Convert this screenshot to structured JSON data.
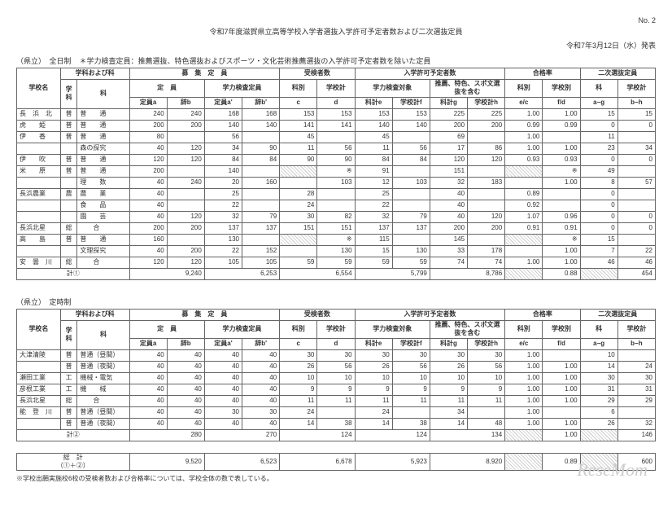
{
  "doc": {
    "title": "令和7年度滋賀県立高等学校入学者選抜入学許可予定者数および二次選抜定員",
    "page_no": "No. 2",
    "announce": "令和7年3月12日（水）発表",
    "section1_label": "（県立）　全日制",
    "note": "＊学力検査定員：推薦選抜、特色選抜およびスポーツ・文化芸術推薦選抜の入学許可予定者数を除いた定員",
    "section2_label": "（県立）　定時制",
    "footnote": "※学校出願実施校6校の受検者数および合格率については、学校全体の数で表している。",
    "watermark": "ReseMom"
  },
  "headers": {
    "school_name": "学校名",
    "dept_group": "学科および科",
    "dept": "学科",
    "course": "科",
    "recruit": "募　集　定　員",
    "capacity": "定　員",
    "exam_capacity": "学力検査定員",
    "examinees": "受検者数",
    "permit": "入学許可予定者数",
    "exam_subject": "学力検査対象",
    "recommend": "推薦、特色、スポ文選抜を含む",
    "pass_rate": "合格率",
    "second": "二次選抜定員",
    "cap_a": "定員a",
    "abs_b": "辞b",
    "cap_a2": "定員a'",
    "abs_b2": "辞b'",
    "c": "c",
    "d": "d",
    "ke": "科計e",
    "kf": "学校計f",
    "kg": "科計g",
    "kh": "学校計h",
    "ec": "e/c",
    "fd": "f/d",
    "ag": "a−g",
    "bh": "b−h",
    "kabetsu": "科別",
    "gakkobetsu": "学校別",
    "ka": "科",
    "gakkokei": "学校計"
  },
  "t1": {
    "rows": [
      {
        "school": "長　浜　北",
        "dept": "普",
        "course": "普　　通",
        "a": "240",
        "b": "240",
        "a2": "168",
        "b2": "168",
        "c": "153",
        "d": "153",
        "e": "153",
        "f": "153",
        "g": "225",
        "h": "225",
        "ec": "1.00",
        "fd": "1.00",
        "ag": "15",
        "bh": "15"
      },
      {
        "school": "虎　　姫",
        "dept": "普",
        "course": "普　　通",
        "a": "200",
        "b": "200",
        "a2": "140",
        "b2": "140",
        "c": "141",
        "d": "141",
        "e": "140",
        "f": "140",
        "g": "200",
        "h": "200",
        "ec": "0.99",
        "fd": "0.99",
        "ag": "0",
        "bh": "0"
      },
      {
        "school": "伊　　香",
        "dept": "普",
        "course": "普　　通",
        "a": "80",
        "b": "",
        "a2": "56",
        "b2": "",
        "c": "45",
        "d": "",
        "e": "45",
        "f": "",
        "g": "69",
        "h": "",
        "ec": "1.00",
        "fd": "",
        "ag": "11",
        "bh": ""
      },
      {
        "school": "",
        "dept": "",
        "course": "森の探究",
        "a": "40",
        "b": "120",
        "a2": "34",
        "b2": "90",
        "c": "11",
        "d": "56",
        "e": "11",
        "f": "56",
        "g": "17",
        "h": "86",
        "ec": "1.00",
        "fd": "1.00",
        "ag": "23",
        "bh": "34"
      },
      {
        "school": "伊　　吹",
        "dept": "普",
        "course": "普　　通",
        "a": "120",
        "b": "120",
        "a2": "84",
        "b2": "84",
        "c": "90",
        "d": "90",
        "e": "84",
        "f": "84",
        "g": "120",
        "h": "120",
        "ec": "0.93",
        "fd": "0.93",
        "ag": "0",
        "bh": "0"
      },
      {
        "school": "米　　原",
        "dept": "普",
        "course": "普　　通",
        "a": "200",
        "b": "",
        "a2": "140",
        "b2": "",
        "c": "",
        "d": "※",
        "e": "91",
        "f": "",
        "g": "151",
        "h": "",
        "ec": "",
        "fd": "※",
        "ag": "49",
        "bh": ""
      },
      {
        "school": "",
        "dept": "",
        "course": "理　　数",
        "a": "40",
        "b": "240",
        "a2": "20",
        "b2": "160",
        "c": "",
        "d": "103",
        "e": "12",
        "f": "103",
        "g": "32",
        "h": "183",
        "ec": "",
        "fd": "1.00",
        "ag": "8",
        "bh": "57"
      },
      {
        "school": "長浜農業",
        "dept": "農",
        "course": "農　　業",
        "a": "40",
        "b": "",
        "a2": "25",
        "b2": "",
        "c": "28",
        "d": "",
        "e": "25",
        "f": "",
        "g": "40",
        "h": "",
        "ec": "0.89",
        "fd": "",
        "ag": "0",
        "bh": ""
      },
      {
        "school": "",
        "dept": "",
        "course": "食　　品",
        "a": "40",
        "b": "",
        "a2": "22",
        "b2": "",
        "c": "24",
        "d": "",
        "e": "22",
        "f": "",
        "g": "40",
        "h": "",
        "ec": "0.92",
        "fd": "",
        "ag": "0",
        "bh": ""
      },
      {
        "school": "",
        "dept": "",
        "course": "園　　芸",
        "a": "40",
        "b": "120",
        "a2": "32",
        "b2": "79",
        "c": "30",
        "d": "82",
        "e": "32",
        "f": "79",
        "g": "40",
        "h": "120",
        "ec": "1.07",
        "fd": "0.96",
        "ag": "0",
        "bh": "0"
      },
      {
        "school": "長浜北星",
        "dept": "総",
        "course": "　　合",
        "a": "200",
        "b": "200",
        "a2": "137",
        "b2": "137",
        "c": "151",
        "d": "151",
        "e": "137",
        "f": "137",
        "g": "200",
        "h": "200",
        "ec": "0.91",
        "fd": "0.91",
        "ag": "0",
        "bh": "0"
      },
      {
        "school": "高　　島",
        "dept": "普",
        "course": "普　　通",
        "a": "160",
        "b": "",
        "a2": "130",
        "b2": "",
        "c": "",
        "d": "※",
        "e": "115",
        "f": "",
        "g": "145",
        "h": "",
        "ec": "",
        "fd": "※",
        "ag": "15",
        "bh": ""
      },
      {
        "school": "",
        "dept": "",
        "course": "文理探究",
        "a": "40",
        "b": "200",
        "a2": "22",
        "b2": "152",
        "c": "",
        "d": "130",
        "e": "15",
        "f": "130",
        "g": "33",
        "h": "178",
        "ec": "",
        "fd": "1.00",
        "ag": "7",
        "bh": "22"
      },
      {
        "school": "安　曇　川",
        "dept": "総",
        "course": "　　合",
        "a": "120",
        "b": "120",
        "a2": "105",
        "b2": "105",
        "c": "59",
        "d": "59",
        "e": "59",
        "f": "59",
        "g": "74",
        "h": "74",
        "ec": "1.00",
        "fd": "1.00",
        "ag": "46",
        "bh": "46"
      }
    ],
    "total_label": "計①",
    "total": {
      "a": "9,240",
      "a2": "6,253",
      "d": "6,554",
      "f": "5,799",
      "h": "8,786",
      "fd": "0.88",
      "bh": "454"
    }
  },
  "t2": {
    "rows": [
      {
        "school": "大津清陵",
        "dept": "普",
        "course": "普通（昼間）",
        "a": "40",
        "b": "40",
        "a2": "40",
        "b2": "40",
        "c": "30",
        "d": "30",
        "e": "30",
        "f": "30",
        "g": "30",
        "h": "30",
        "ec": "1.00",
        "fd": "",
        "ag": "10",
        "bh": ""
      },
      {
        "school": "",
        "dept": "普",
        "course": "普通（夜間）",
        "a": "40",
        "b": "40",
        "a2": "40",
        "b2": "40",
        "c": "26",
        "d": "56",
        "e": "26",
        "f": "56",
        "g": "26",
        "h": "56",
        "ec": "1.00",
        "fd": "1.00",
        "ag": "14",
        "bh": "24"
      },
      {
        "school": "瀬田工業",
        "dept": "工",
        "course": "機械・電気",
        "a": "40",
        "b": "40",
        "a2": "40",
        "b2": "40",
        "c": "10",
        "d": "10",
        "e": "10",
        "f": "10",
        "g": "10",
        "h": "10",
        "ec": "1.00",
        "fd": "1.00",
        "ag": "30",
        "bh": "30"
      },
      {
        "school": "彦根工業",
        "dept": "工",
        "course": "機　　械",
        "a": "40",
        "b": "40",
        "a2": "40",
        "b2": "40",
        "c": "9",
        "d": "9",
        "e": "9",
        "f": "9",
        "g": "9",
        "h": "9",
        "ec": "1.00",
        "fd": "1.00",
        "ag": "31",
        "bh": "31"
      },
      {
        "school": "長浜北星",
        "dept": "総",
        "course": "　　合",
        "a": "40",
        "b": "40",
        "a2": "40",
        "b2": "40",
        "c": "11",
        "d": "11",
        "e": "11",
        "f": "11",
        "g": "11",
        "h": "11",
        "ec": "1.00",
        "fd": "1.00",
        "ag": "29",
        "bh": "29"
      },
      {
        "school": "能　登　川",
        "dept": "普",
        "course": "普通（昼間）",
        "a": "40",
        "b": "40",
        "a2": "30",
        "b2": "30",
        "c": "24",
        "d": "",
        "e": "24",
        "f": "",
        "g": "34",
        "h": "",
        "ec": "1.00",
        "fd": "",
        "ag": "6",
        "bh": ""
      },
      {
        "school": "",
        "dept": "普",
        "course": "普通（夜間）",
        "a": "40",
        "b": "40",
        "a2": "40",
        "b2": "40",
        "c": "14",
        "d": "38",
        "e": "14",
        "f": "38",
        "g": "14",
        "h": "48",
        "ec": "1.00",
        "fd": "1.00",
        "ag": "26",
        "bh": "32"
      }
    ],
    "total_label": "計②",
    "total": {
      "a": "280",
      "a2": "270",
      "d": "124",
      "f": "124",
      "h": "134",
      "fd": "1.00",
      "bh": "146"
    }
  },
  "grand": {
    "label": "総　計\n（①＋②）",
    "a": "9,520",
    "a2": "6,523",
    "d": "6,678",
    "f": "5,923",
    "h": "8,920",
    "fd": "0.89",
    "bh": "600"
  }
}
